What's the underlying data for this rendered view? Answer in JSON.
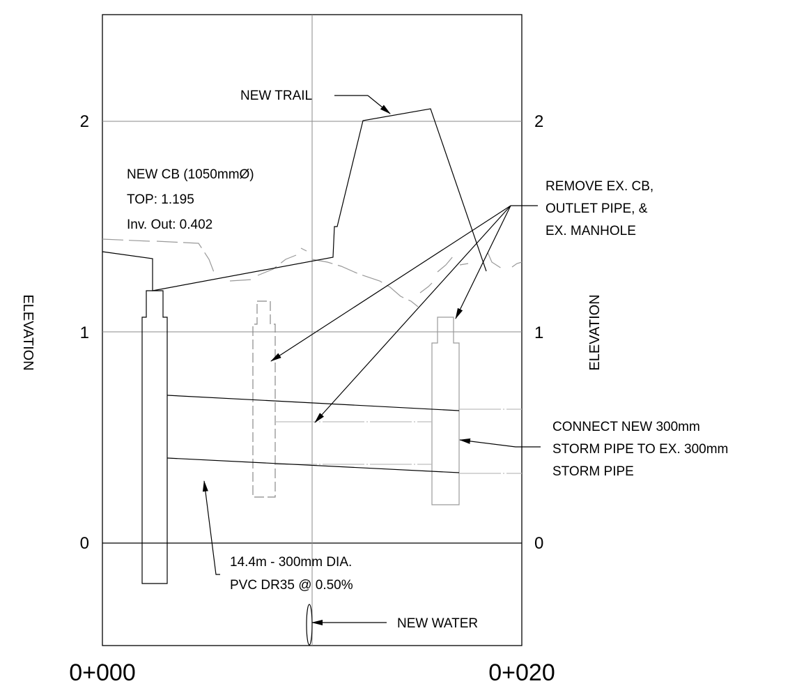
{
  "profile": {
    "elevation_ticks": [
      "2",
      "1",
      "0"
    ],
    "station_labels": [
      "0+000",
      "0+020"
    ],
    "axis_label": "ELEVATION"
  },
  "notes": {
    "new_trail": "NEW TRAIL",
    "new_cb": [
      "NEW CB (1050mmØ)",
      "TOP: 1.195",
      "Inv. Out: 0.402"
    ],
    "remove": [
      "REMOVE EX. CB,",
      "OUTLET PIPE, &",
      "EX. MANHOLE"
    ],
    "connect": [
      "CONNECT NEW 300mm",
      "STORM PIPE TO EX. 300mm",
      "STORM PIPE"
    ],
    "pipe": [
      "14.4m - 300mm DIA.",
      "PVC DR35 @ 0.50%"
    ],
    "new_water": "NEW WATER"
  }
}
